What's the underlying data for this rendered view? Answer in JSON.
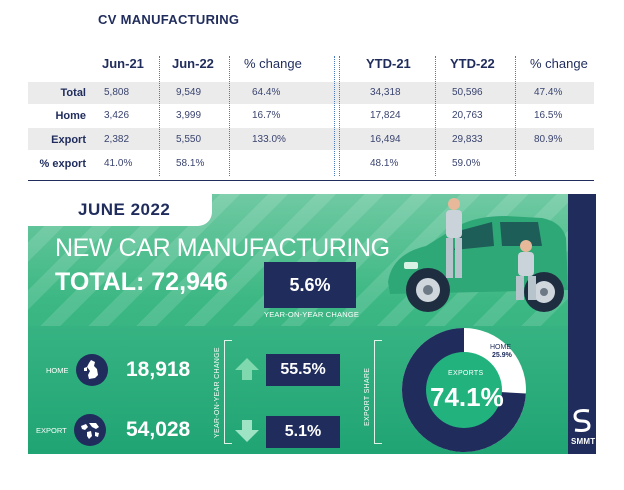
{
  "table": {
    "title": "CV MANUFACTURING",
    "headers": [
      "Jun-21",
      "Jun-22",
      "% change",
      "YTD-21",
      "YTD-22",
      "% change"
    ],
    "rows": [
      {
        "label": "Total",
        "values": [
          "5,808",
          "9,549",
          "64.4%",
          "34,318",
          "50,596",
          "47.4%"
        ]
      },
      {
        "label": "Home",
        "values": [
          "3,426",
          "3,999",
          "16.7%",
          "17,824",
          "20,763",
          "16.5%"
        ]
      },
      {
        "label": "Export",
        "values": [
          "2,382",
          "5,550",
          "133.0%",
          "16,494",
          "29,833",
          "80.9%"
        ]
      },
      {
        "label": "% export",
        "values": [
          "41.0%",
          "58.1%",
          "",
          "48.1%",
          "59.0%",
          ""
        ]
      }
    ]
  },
  "infographic": {
    "month": "JUNE 2022",
    "headline": "NEW CAR MANUFACTURING",
    "total_line": "TOTAL: 72,946",
    "yoy_value": "5.6%",
    "yoy_caption": "YEAR-ON-YEAR CHANGE",
    "home_label": "HOME",
    "home_value": "18,918",
    "home_change": "55.5%",
    "export_label": "EXPORT",
    "export_value": "54,028",
    "export_change": "5.1%",
    "yoy_vertical": "YEAR-ON-YEAR CHANGE",
    "share_vertical": "EXPORT SHARE",
    "donut_sub": "EXPORTS",
    "donut_value": "74.1%",
    "donut_home_label": "HOME",
    "donut_home_value": "25.9%",
    "brand": "SMMT"
  },
  "colors": {
    "navy": "#1f2c5c",
    "green": "#3db884",
    "arrow_up": "#7fd8ae",
    "arrow_down": "#9ee4c4"
  },
  "chart_data": [
    {
      "type": "table",
      "title": "CV MANUFACTURING",
      "columns": [
        "Jun-21",
        "Jun-22",
        "% change",
        "YTD-21",
        "YTD-22",
        "% change"
      ],
      "rows": [
        "Total",
        "Home",
        "Export",
        "% export"
      ],
      "values": [
        [
          5808,
          9549,
          64.4,
          34318,
          50596,
          47.4
        ],
        [
          3426,
          3999,
          16.7,
          17824,
          20763,
          16.5
        ],
        [
          2382,
          5550,
          133.0,
          16494,
          29833,
          80.9
        ],
        [
          41.0,
          58.1,
          null,
          48.1,
          59.0,
          null
        ]
      ]
    },
    {
      "type": "pie",
      "categories": [
        "EXPORTS",
        "HOME"
      ],
      "values": [
        74.1,
        25.9
      ]
    }
  ]
}
